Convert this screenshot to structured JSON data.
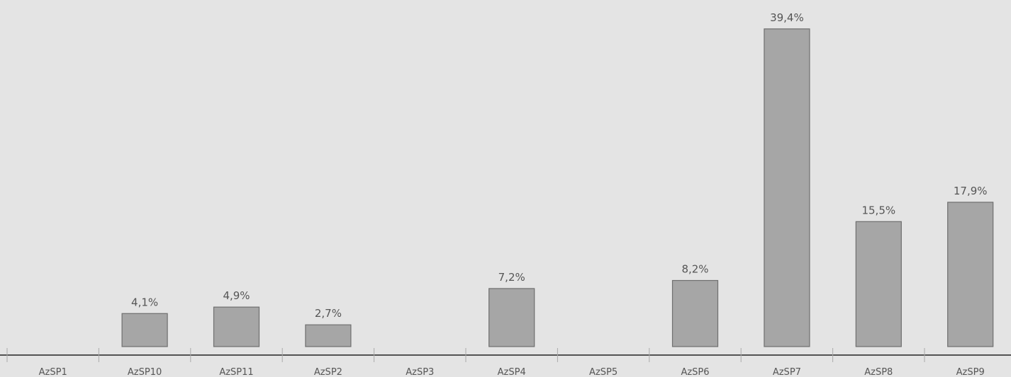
{
  "chart_data": {
    "type": "bar",
    "title": "",
    "xlabel": "",
    "ylabel": "",
    "categories": [
      "AzSP1",
      "AzSP10",
      "AzSP11",
      "AzSP2",
      "AzSP3",
      "AzSP4",
      "AzSP5",
      "AzSP6",
      "AzSP7",
      "AzSP8",
      "AzSP9"
    ],
    "values": [
      null,
      4.1,
      4.9,
      2.7,
      null,
      7.2,
      null,
      8.2,
      39.4,
      15.5,
      17.9
    ],
    "data_labels": [
      "",
      "4,1%",
      "4,9%",
      "2,7%",
      "",
      "7,2%",
      "",
      "8,2%",
      "39,4%",
      "15,5%",
      "17,9%"
    ],
    "ylim": [
      0,
      40
    ],
    "grid": false,
    "legend": "none",
    "colors": {
      "background": "#e4e4e4",
      "bar_fill": "#a6a6a6",
      "bar_stroke": "#6f6f6f",
      "text": "#555555",
      "axis": "#222222"
    }
  }
}
